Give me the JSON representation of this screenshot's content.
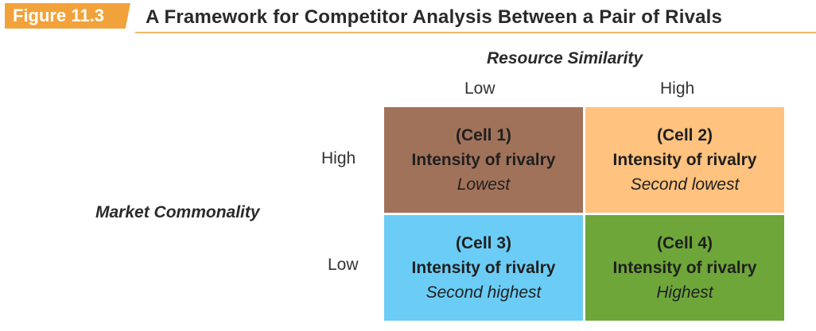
{
  "figure": {
    "label": "Figure 11.3",
    "title": "A Framework for Competitor Analysis Between a Pair of Rivals"
  },
  "axes": {
    "x": {
      "title": "Resource Similarity",
      "categories": [
        "Low",
        "High"
      ]
    },
    "y": {
      "title": "Market Commonality",
      "categories": [
        "High",
        "Low"
      ]
    }
  },
  "cells": [
    {
      "id": "(Cell 1)",
      "label": "Intensity of rivalry",
      "level": "Lowest",
      "resource_similarity": "Low",
      "market_commonality": "High",
      "color": "#a1725a"
    },
    {
      "id": "(Cell 2)",
      "label": "Intensity of rivalry",
      "level": "Second lowest",
      "resource_similarity": "High",
      "market_commonality": "High",
      "color": "#ffc27f"
    },
    {
      "id": "(Cell 3)",
      "label": "Intensity of rivalry",
      "level": "Second highest",
      "resource_similarity": "Low",
      "market_commonality": "Low",
      "color": "#6bcdf5"
    },
    {
      "id": "(Cell 4)",
      "label": "Intensity of rivalry",
      "level": "Highest",
      "resource_similarity": "High",
      "market_commonality": "Low",
      "color": "#6ea63a"
    }
  ],
  "colors": {
    "figure_label_bg": "#f2a23a",
    "rule": "#f2b76a"
  }
}
